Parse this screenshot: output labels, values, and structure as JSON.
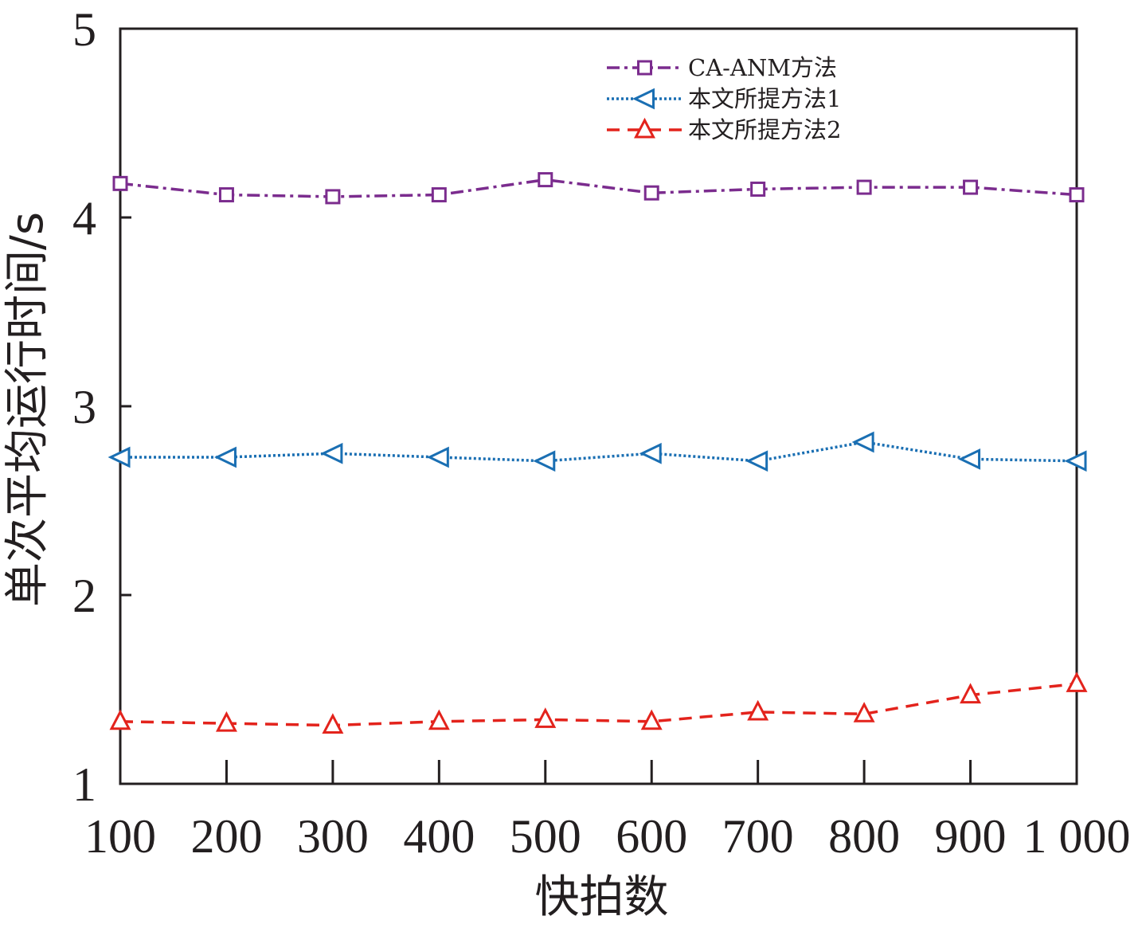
{
  "chart_data": {
    "type": "line",
    "title": "",
    "xlabel": "快拍数",
    "ylabel": "单次平均运行时间/s",
    "x": [
      100,
      200,
      300,
      400,
      500,
      600,
      700,
      800,
      900,
      1000
    ],
    "x_tick_labels": [
      "100",
      "200",
      "300",
      "400",
      "500",
      "600",
      "700",
      "800",
      "900",
      "1 000"
    ],
    "xlim": [
      100,
      1000
    ],
    "ylim": [
      1,
      5
    ],
    "y_ticks": [
      1,
      2,
      3,
      4,
      5
    ],
    "y_tick_labels": [
      "1",
      "2",
      "3",
      "4",
      "5"
    ],
    "grid": false,
    "legend_position": "top-right",
    "series": [
      {
        "name": "CA-ANM方法",
        "color": "#7b2c8e",
        "dash": "dash-dot",
        "marker": "square",
        "values": [
          4.18,
          4.12,
          4.11,
          4.12,
          4.2,
          4.13,
          4.15,
          4.16,
          4.16,
          4.12
        ]
      },
      {
        "name": "本文所提方法1",
        "color": "#1a6fb3",
        "dash": "dotted",
        "marker": "triangle-left",
        "values": [
          2.73,
          2.73,
          2.75,
          2.73,
          2.71,
          2.75,
          2.71,
          2.81,
          2.72,
          2.71
        ]
      },
      {
        "name": "本文所提方法2",
        "color": "#e3231c",
        "dash": "dashed",
        "marker": "triangle-up",
        "values": [
          1.33,
          1.32,
          1.31,
          1.33,
          1.34,
          1.33,
          1.38,
          1.37,
          1.47,
          1.53
        ]
      }
    ]
  }
}
